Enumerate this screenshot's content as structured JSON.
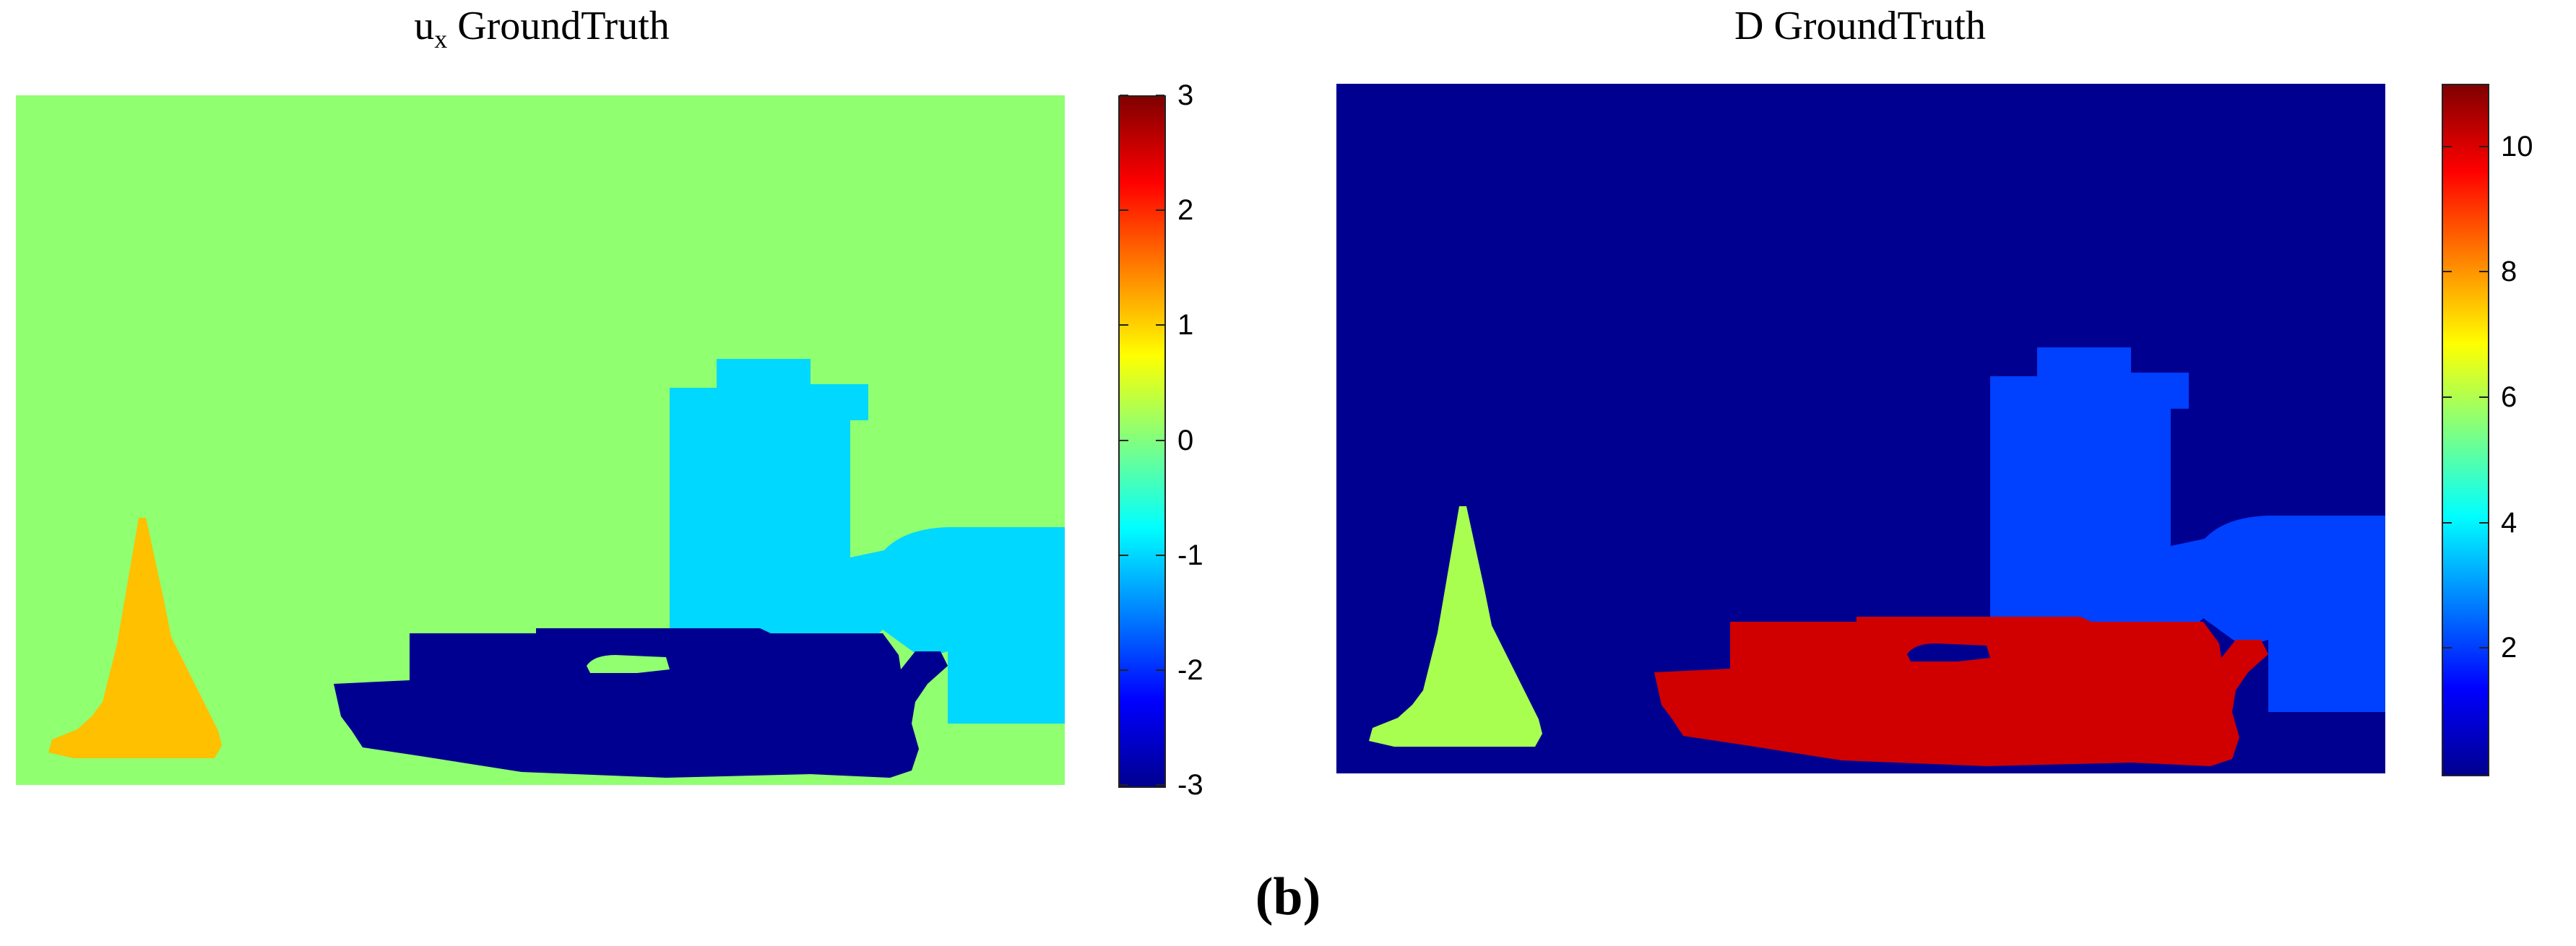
{
  "panels": [
    {
      "title_main": "u",
      "title_sub": "x",
      "title_rest": " GroundTruth",
      "colorbar_ticks": [
        "3",
        "2",
        "1",
        "0",
        "-1",
        "-2",
        "-3"
      ],
      "colorbar_range": [
        -3,
        3
      ],
      "colors": {
        "background": "#90ff70",
        "sailboat": "#ffc000",
        "building": "#00d8ff",
        "boat": "#000090",
        "cutout": "#90ff70"
      }
    },
    {
      "title_main": "D GroundTruth",
      "title_sub": "",
      "title_rest": "",
      "colorbar_ticks": [
        "10",
        "8",
        "6",
        "4",
        "2"
      ],
      "colorbar_range": [
        0,
        11
      ],
      "colors": {
        "background": "#000090",
        "sailboat": "#a8ff50",
        "building": "#0040ff",
        "boat": "#d00000",
        "cutout": "#000090"
      }
    }
  ],
  "caption": "(b)"
}
